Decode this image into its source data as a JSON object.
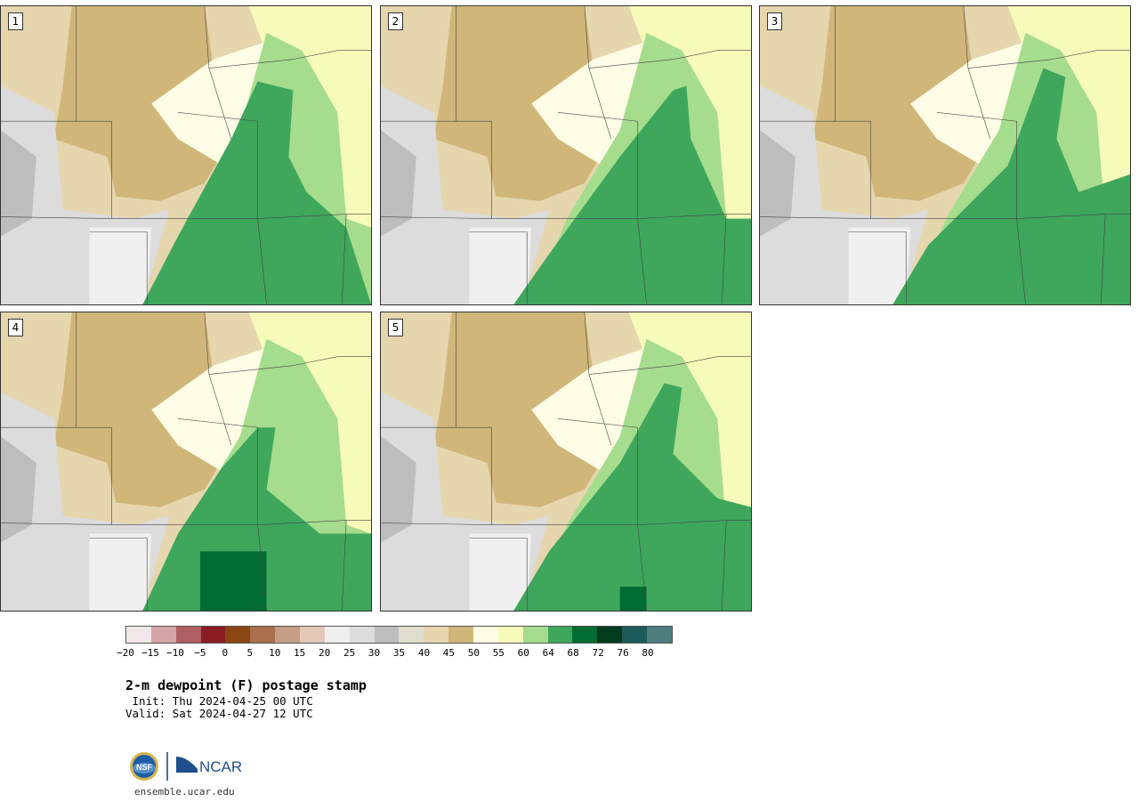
{
  "panels": [
    {
      "label": "1"
    },
    {
      "label": "2"
    },
    {
      "label": "3"
    },
    {
      "label": "4"
    },
    {
      "label": "5"
    }
  ],
  "colorbar": {
    "colors": [
      "#f2e8e9",
      "#d4a3a8",
      "#b05f65",
      "#8c1c24",
      "#8b4513",
      "#a9714c",
      "#c69d86",
      "#e3c8b8",
      "#f0f0f0",
      "#dcdcdc",
      "#bdbdbd",
      "#e0dfcf",
      "#e5d6ae",
      "#d0b679",
      "#fffde5",
      "#f7fbb9",
      "#a6dc8d",
      "#3ea75c",
      "#006b32",
      "#003b1e",
      "#1c5b59",
      "#4e7d7e"
    ],
    "tick_labels": [
      "−20",
      "−15",
      "−10",
      "−5",
      "0",
      "5",
      "10",
      "15",
      "20",
      "25",
      "30",
      "35",
      "40",
      "45",
      "50",
      "55",
      "60",
      "64",
      "68",
      "72",
      "76",
      "80"
    ]
  },
  "text": {
    "title": "2-m dewpoint (F) postage stamp",
    "init": " Init: Thu 2024-04-25 00 UTC",
    "valid": "Valid: Sat 2024-04-27 12 UTC",
    "site": "ensemble.ucar.edu",
    "logo_nsf": "NSF",
    "logo_ncar": "NCAR"
  }
}
